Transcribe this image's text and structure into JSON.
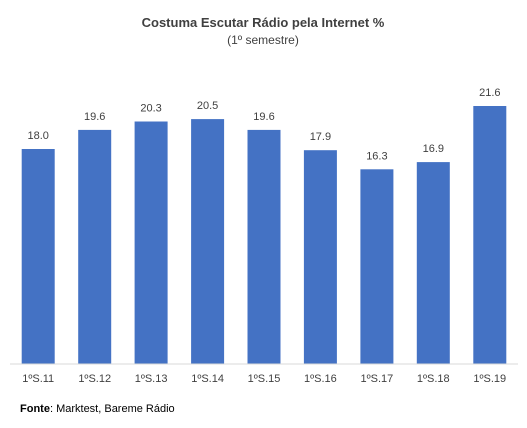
{
  "chart_data": {
    "type": "bar",
    "title": "Costuma Escutar Rádio pela Internet %",
    "subtitle": "(1º semestre)",
    "categories": [
      "1ºS.11",
      "1ºS.12",
      "1ºS.13",
      "1ºS.14",
      "1ºS.15",
      "1ºS.16",
      "1ºS.17",
      "1ºS.18",
      "1ºS.19"
    ],
    "values": [
      18.0,
      19.6,
      20.3,
      20.5,
      19.6,
      17.9,
      16.3,
      16.9,
      21.6
    ],
    "value_labels": [
      "18.0",
      "19.6",
      "20.3",
      "20.5",
      "19.6",
      "17.9",
      "16.3",
      "16.9",
      "21.6"
    ],
    "ylim": [
      0,
      21.6
    ],
    "grid": false,
    "legend": "none",
    "bar_color": "#4472C4",
    "axis_color": "#D9D9D9"
  },
  "source": {
    "label": "Fonte",
    "text": ": Marktest, Bareme Rádio"
  }
}
